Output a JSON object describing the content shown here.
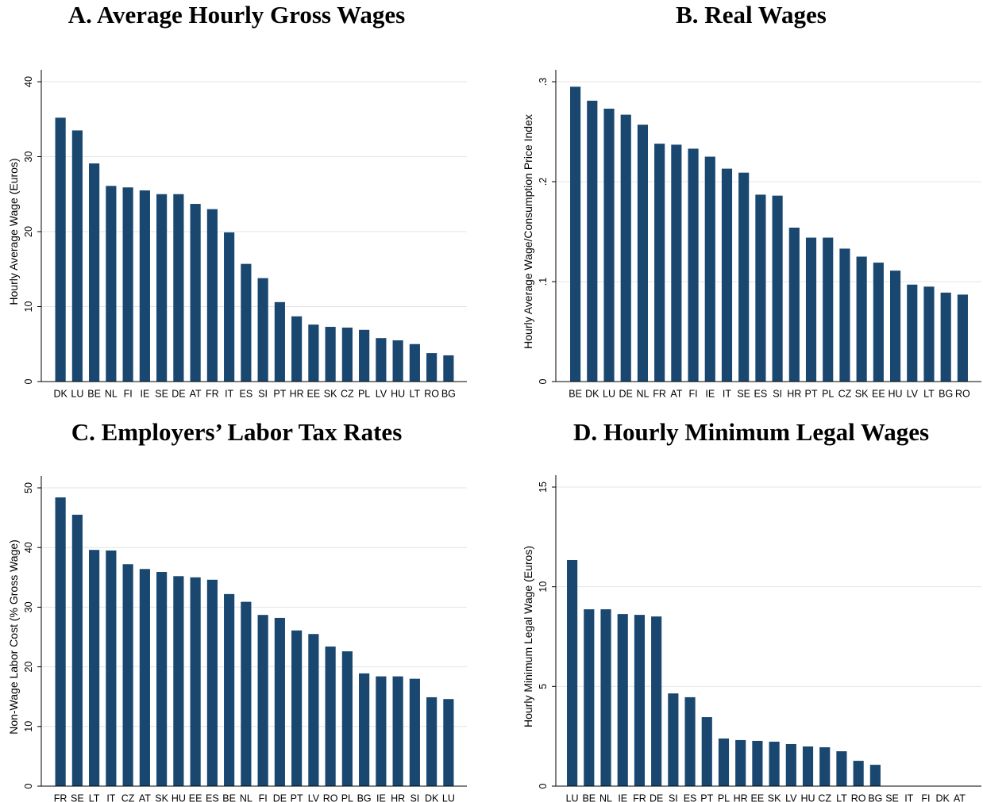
{
  "chart_data": [
    {
      "type": "bar",
      "title": "A. Average Hourly Gross Wages",
      "y_label": "Hourly Average Wage (Euros)",
      "categories": [
        "DK",
        "LU",
        "BE",
        "NL",
        "FI",
        "IE",
        "SE",
        "DE",
        "AT",
        "FR",
        "IT",
        "ES",
        "SI",
        "PT",
        "HR",
        "EE",
        "SK",
        "CZ",
        "PL",
        "LV",
        "HU",
        "LT",
        "RO",
        "BG"
      ],
      "values": [
        35.2,
        33.5,
        29.1,
        26.1,
        25.9,
        25.5,
        25.0,
        25.0,
        23.7,
        23.0,
        19.9,
        15.7,
        13.8,
        10.6,
        8.7,
        7.6,
        7.3,
        7.2,
        6.9,
        5.8,
        5.5,
        5.0,
        3.8,
        3.5
      ],
      "color": "#1a476f",
      "ylim": [
        0,
        40
      ],
      "yticks": [
        0,
        10,
        20,
        30,
        40
      ],
      "grid": true
    },
    {
      "type": "bar",
      "title": "B. Real Wages",
      "y_label": "Hourly Average Wage/Consumption Price Index",
      "categories": [
        "BE",
        "DK",
        "LU",
        "DE",
        "NL",
        "FR",
        "AT",
        "FI",
        "IE",
        "IT",
        "SE",
        "ES",
        "SI",
        "HR",
        "PT",
        "PL",
        "CZ",
        "SK",
        "EE",
        "HU",
        "LV",
        "LT",
        "BG",
        "RO"
      ],
      "values": [
        0.295,
        0.281,
        0.273,
        0.267,
        0.257,
        0.238,
        0.237,
        0.233,
        0.225,
        0.213,
        0.209,
        0.187,
        0.186,
        0.154,
        0.144,
        0.144,
        0.133,
        0.125,
        0.119,
        0.111,
        0.097,
        0.095,
        0.089,
        0.087
      ],
      "color": "#1a476f",
      "ylim": [
        0,
        0.3
      ],
      "yticks": [
        0,
        {
          "value": 0.1,
          "label": ".1"
        },
        {
          "value": 0.2,
          "label": ".2"
        },
        {
          "value": 0.3,
          "label": ".3"
        }
      ],
      "grid": true
    },
    {
      "type": "bar",
      "title": "C. Employers’ Labor Tax Rates",
      "y_label": "Non-Wage Labor Cost (% Gross Wage)",
      "categories": [
        "FR",
        "SE",
        "LT",
        "IT",
        "CZ",
        "AT",
        "SK",
        "HU",
        "EE",
        "ES",
        "BE",
        "NL",
        "FI",
        "DE",
        "PT",
        "LV",
        "RO",
        "PL",
        "BG",
        "IE",
        "HR",
        "SI",
        "DK",
        "LU"
      ],
      "values": [
        48.4,
        45.5,
        39.6,
        39.5,
        37.2,
        36.4,
        35.9,
        35.2,
        35.0,
        34.6,
        32.2,
        30.9,
        28.7,
        28.2,
        26.1,
        25.5,
        23.4,
        22.6,
        18.9,
        18.4,
        18.4,
        18.0,
        14.9,
        14.6
      ],
      "color": "#1a476f",
      "ylim": [
        0,
        50
      ],
      "yticks": [
        0,
        10,
        20,
        30,
        40,
        50
      ],
      "grid": true
    },
    {
      "type": "bar",
      "title": "D. Hourly Minimum Legal Wages",
      "y_label": "Hourly Minimum Legal Wage (Euros)",
      "categories": [
        "LU",
        "BE",
        "NL",
        "IE",
        "FR",
        "DE",
        "SI",
        "ES",
        "PT",
        "PL",
        "HR",
        "EE",
        "SK",
        "LV",
        "HU",
        "CZ",
        "LT",
        "RO",
        "BG",
        "SE",
        "IT",
        "FI",
        "DK",
        "AT"
      ],
      "values": [
        11.34,
        8.87,
        8.87,
        8.63,
        8.59,
        8.51,
        4.65,
        4.46,
        3.46,
        2.39,
        2.31,
        2.27,
        2.23,
        2.11,
        1.99,
        1.95,
        1.75,
        1.27,
        1.07,
        null,
        null,
        null,
        null,
        null
      ],
      "color": "#1a476f",
      "ylim": [
        0,
        15
      ],
      "yticks": [
        0,
        5,
        10,
        15
      ],
      "grid": true
    }
  ]
}
